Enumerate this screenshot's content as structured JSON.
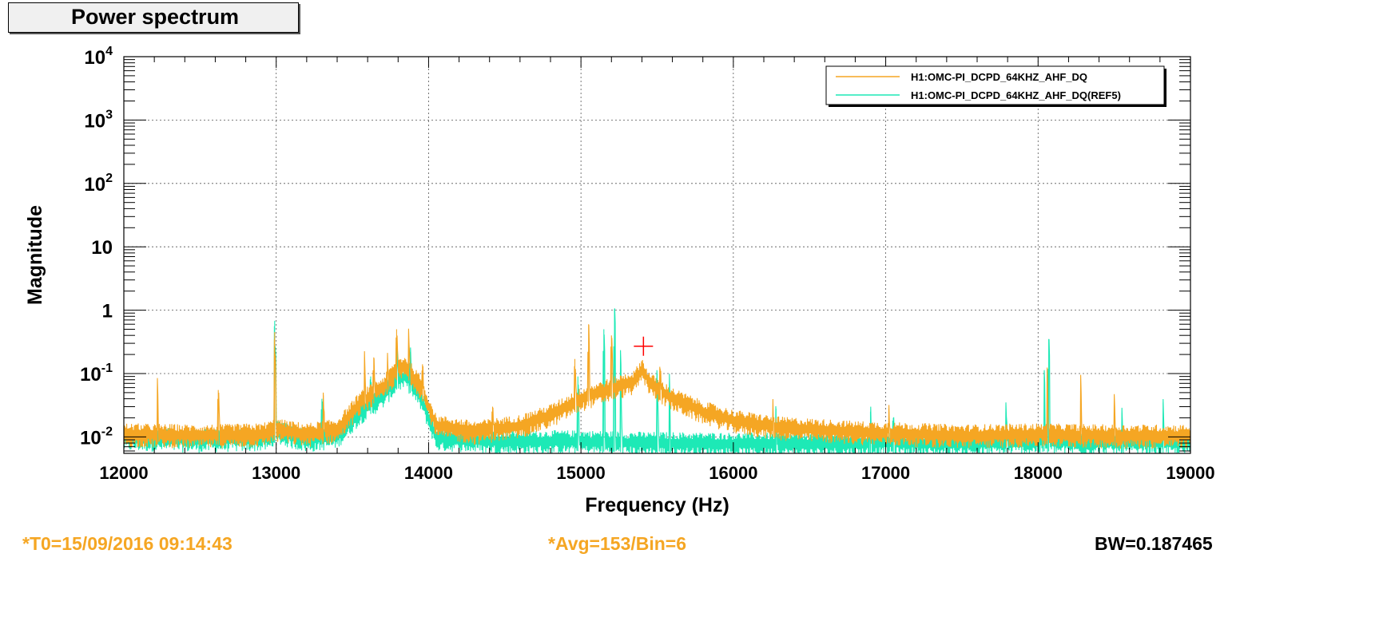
{
  "window": {
    "title": "Power spectrum"
  },
  "footer": {
    "t0": "*T0=15/09/2016 09:14:43",
    "avg": "*Avg=153/Bin=6",
    "bw": "BW=0.187465"
  },
  "colors": {
    "current": "#f5a623",
    "reference": "#1de9b6",
    "cursor": "#ff0000",
    "footer_info": "#f5a623"
  },
  "chart_data": {
    "type": "line",
    "title": "Power spectrum",
    "xlabel": "Frequency (Hz)",
    "ylabel": "Magnitude",
    "xlim": [
      12000,
      19000
    ],
    "ylim": [
      0.0055,
      10000
    ],
    "yscale": "log",
    "grid": true,
    "legend_position": "top-right",
    "x_ticks": [
      12000,
      13000,
      14000,
      15000,
      16000,
      17000,
      18000,
      19000
    ],
    "x_tick_labels": [
      "12000",
      "13000",
      "14000",
      "15000",
      "16000",
      "17000",
      "18000",
      "19000"
    ],
    "y_ticks": [
      {
        "value": 0.01,
        "base": "10",
        "exp": "-2"
      },
      {
        "value": 0.1,
        "base": "10",
        "exp": "-1"
      },
      {
        "value": 1,
        "base": "1",
        "exp": ""
      },
      {
        "value": 10,
        "base": "10",
        "exp": ""
      },
      {
        "value": 100,
        "base": "10",
        "exp": "2"
      },
      {
        "value": 1000,
        "base": "10",
        "exp": "3"
      },
      {
        "value": 10000,
        "base": "10",
        "exp": "4"
      }
    ],
    "cursor": {
      "x": 15410,
      "y": 0.27
    },
    "series": [
      {
        "name": "H1:OMC-PI_DCPD_64KHZ_AHF_DQ",
        "color": "#f5a623",
        "envelope": [
          [
            12000,
            0.011
          ],
          [
            12500,
            0.0105
          ],
          [
            12900,
            0.011
          ],
          [
            13000,
            0.013
          ],
          [
            13200,
            0.011
          ],
          [
            13400,
            0.013
          ],
          [
            13550,
            0.035
          ],
          [
            13700,
            0.06
          ],
          [
            13800,
            0.12
          ],
          [
            13850,
            0.13
          ],
          [
            13950,
            0.06
          ],
          [
            14050,
            0.015
          ],
          [
            14300,
            0.012
          ],
          [
            14600,
            0.015
          ],
          [
            14800,
            0.022
          ],
          [
            15000,
            0.04
          ],
          [
            15200,
            0.058
          ],
          [
            15350,
            0.075
          ],
          [
            15400,
            0.12
          ],
          [
            15450,
            0.07
          ],
          [
            15600,
            0.04
          ],
          [
            15800,
            0.025
          ],
          [
            16000,
            0.018
          ],
          [
            16300,
            0.014
          ],
          [
            16800,
            0.012
          ],
          [
            17500,
            0.0105
          ],
          [
            18000,
            0.011
          ],
          [
            18500,
            0.0105
          ],
          [
            19000,
            0.0105
          ]
        ],
        "peaks": [
          [
            12220,
            0.06
          ],
          [
            12620,
            0.055
          ],
          [
            12990,
            0.45
          ],
          [
            13310,
            0.045
          ],
          [
            13580,
            0.17
          ],
          [
            13640,
            0.18
          ],
          [
            13730,
            0.15
          ],
          [
            13790,
            0.5
          ],
          [
            13870,
            0.42
          ],
          [
            13960,
            0.14
          ],
          [
            14420,
            0.03
          ],
          [
            14960,
            0.17
          ],
          [
            15050,
            0.6
          ],
          [
            15200,
            0.4
          ],
          [
            15520,
            0.12
          ],
          [
            16260,
            0.028
          ],
          [
            17020,
            0.028
          ],
          [
            18060,
            0.12
          ],
          [
            18280,
            0.07
          ],
          [
            18500,
            0.04
          ]
        ]
      },
      {
        "name": "H1:OMC-PI_DCPD_64KHZ_AHF_DQ(REF5)",
        "color": "#1de9b6",
        "envelope": [
          [
            12000,
            0.0095
          ],
          [
            12500,
            0.009
          ],
          [
            12950,
            0.0095
          ],
          [
            13000,
            0.012
          ],
          [
            13200,
            0.009
          ],
          [
            13400,
            0.0105
          ],
          [
            13550,
            0.025
          ],
          [
            13700,
            0.045
          ],
          [
            13800,
            0.085
          ],
          [
            13850,
            0.09
          ],
          [
            13950,
            0.04
          ],
          [
            14050,
            0.0095
          ],
          [
            14500,
            0.0085
          ],
          [
            15000,
            0.0085
          ],
          [
            15500,
            0.008
          ],
          [
            16000,
            0.0078
          ],
          [
            16500,
            0.0078
          ],
          [
            17000,
            0.008
          ],
          [
            17500,
            0.0078
          ],
          [
            18000,
            0.0085
          ],
          [
            18500,
            0.0082
          ],
          [
            19000,
            0.008
          ]
        ],
        "peaks": [
          [
            12990,
            0.68
          ],
          [
            13300,
            0.04
          ],
          [
            13620,
            0.09
          ],
          [
            13790,
            0.3
          ],
          [
            13880,
            0.22
          ],
          [
            14980,
            0.09
          ],
          [
            15150,
            0.5
          ],
          [
            15220,
            1.05
          ],
          [
            15260,
            0.2
          ],
          [
            15500,
            0.1
          ],
          [
            15580,
            0.07
          ],
          [
            16280,
            0.028
          ],
          [
            16900,
            0.025
          ],
          [
            17050,
            0.02
          ],
          [
            17790,
            0.03
          ],
          [
            18040,
            0.09
          ],
          [
            18070,
            0.35
          ],
          [
            18550,
            0.025
          ],
          [
            18820,
            0.035
          ]
        ]
      }
    ]
  }
}
